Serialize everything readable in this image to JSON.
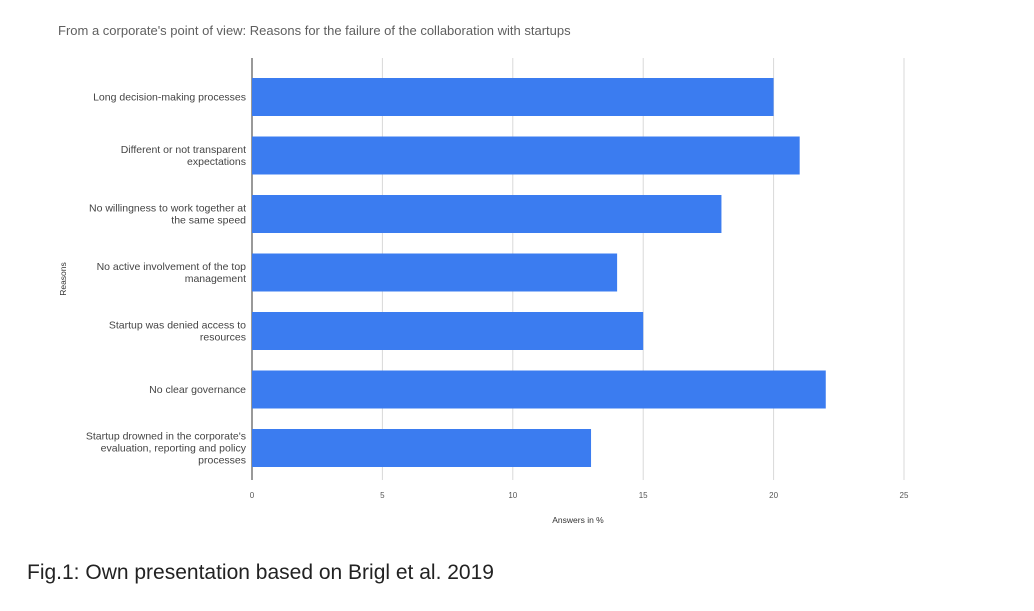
{
  "caption": "Fig.1: Own presentation based on Brigl et al. 2019",
  "chart_data": {
    "type": "bar",
    "orientation": "horizontal",
    "title": "From a corporate's point of view: Reasons for the failure of the collaboration with startups",
    "xlabel": "Answers in %",
    "ylabel": "Reasons",
    "xlim": [
      0,
      25
    ],
    "xticks": [
      0,
      5,
      10,
      15,
      20,
      25
    ],
    "grid": true,
    "legend": "none",
    "bar_color": "#3b7cf0",
    "categories": [
      [
        "Long decision-making processes"
      ],
      [
        "Different or not transparent",
        "expectations"
      ],
      [
        "No willingness to work together at",
        "the same speed"
      ],
      [
        "No active involvement of the top",
        "management"
      ],
      [
        "Startup was denied access to",
        "resources"
      ],
      [
        "No clear governance"
      ],
      [
        "Startup drowned in the corporate's",
        "evaluation, reporting and policy",
        "processes"
      ]
    ],
    "values": [
      20,
      21,
      18,
      14,
      15,
      22,
      13
    ]
  }
}
